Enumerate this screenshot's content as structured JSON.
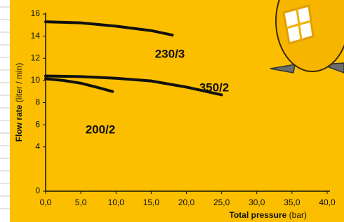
{
  "chart_data": {
    "type": "line",
    "ylabel": "Flow rate",
    "ylabel_unit": "(liter / min)",
    "xlabel": "Total pressure",
    "xlabel_unit": "(bar)",
    "xlim": [
      0,
      40
    ],
    "xticks": [
      {
        "value": 0,
        "label": "0,0"
      },
      {
        "value": 5,
        "label": "5,0"
      },
      {
        "value": 10,
        "label": "10,0"
      },
      {
        "value": 15,
        "label": "15,0"
      },
      {
        "value": 20,
        "label": "20,0"
      },
      {
        "value": 25,
        "label": "25,0"
      },
      {
        "value": 30,
        "label": "30,0"
      },
      {
        "value": 35,
        "label": "35,0"
      },
      {
        "value": 40,
        "label": "40,0"
      }
    ],
    "ylim": [
      0,
      16
    ],
    "yticks": [
      0,
      4,
      6,
      8,
      10,
      12,
      14,
      16
    ],
    "series": [
      {
        "name": "230/3",
        "color": "#111111",
        "x": [
          0,
          5,
          10,
          15,
          18
        ],
        "values": [
          15.3,
          15.2,
          14.9,
          14.5,
          14.1
        ]
      },
      {
        "name": "350/2",
        "color": "#111111",
        "x": [
          0,
          5,
          10,
          15,
          20,
          25
        ],
        "values": [
          10.4,
          10.35,
          10.2,
          9.95,
          9.4,
          8.7
        ]
      },
      {
        "name": "200/2",
        "color": "#111111",
        "x": [
          0,
          2.5,
          5,
          7.5,
          9.5
        ],
        "values": [
          10.15,
          10.0,
          9.75,
          9.35,
          9.0
        ]
      }
    ]
  }
}
